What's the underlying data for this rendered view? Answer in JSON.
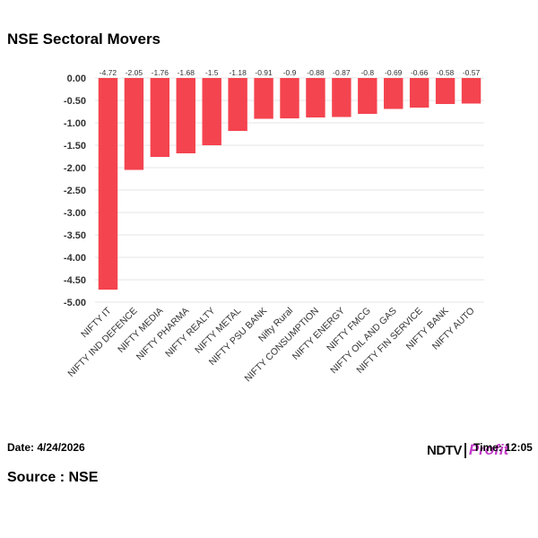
{
  "title": "NSE Sectoral Movers",
  "date_label": "Date: 4/24/2026",
  "time_label": "Time: 12:05",
  "source_label": "Source : NSE",
  "logo": {
    "main": "NDTV",
    "sub": "Profit"
  },
  "colors": {
    "bar": "#f4444f",
    "grid": "#e6e6e6",
    "text": "#333333",
    "logo_accent": "#c23cc8"
  },
  "chart_data": {
    "type": "bar",
    "categories": [
      "NIFTY IT",
      "NIFTY IND DEFENCE",
      "NIFTY MEDIA",
      "NIFTY PHARMA",
      "NIFTY REALTY",
      "NIFTY METAL",
      "NIFTY PSU BANK",
      "Nifty Rural",
      "NIFTY CONSUMPTION",
      "NIFTY ENERGY",
      "NIFTY FMCG",
      "NIFTY OIL AND GAS",
      "NIFTY FIN SERVICE",
      "NIFTY BANK",
      "NIFTY AUTO"
    ],
    "values": [
      -4.72,
      -2.05,
      -1.76,
      -1.68,
      -1.5,
      -1.18,
      -0.91,
      -0.9,
      -0.88,
      -0.87,
      -0.8,
      -0.69,
      -0.66,
      -0.58,
      -0.57
    ],
    "data_labels": [
      "-4.72",
      "-2.05",
      "-1.76",
      "-1.68",
      "-1.5",
      "-1.18",
      "-0.91",
      "-0.9",
      "-0.88",
      "-0.87",
      "-0.8",
      "-0.69",
      "-0.66",
      "-0.58",
      "-0.57"
    ],
    "ylim": [
      -5,
      0
    ],
    "yticks": [
      "0.00",
      "-0.50",
      "-1.00",
      "-1.50",
      "-2.00",
      "-2.50",
      "-3.00",
      "-3.50",
      "-4.00",
      "-4.50",
      "-5.00"
    ],
    "grid": true,
    "legend": "none"
  }
}
